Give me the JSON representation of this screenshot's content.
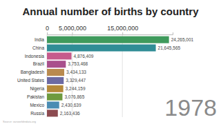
{
  "chart_data": {
    "type": "bar",
    "orientation": "horizontal",
    "title": "Annual number of births by country",
    "categories": [
      "India",
      "China",
      "Indonesia",
      "Brazil",
      "Bangladesh",
      "United States",
      "Nigeria",
      "Pakistan",
      "Mexico",
      "Russia"
    ],
    "values": [
      24265001,
      21645565,
      4876409,
      3753468,
      3434133,
      3329447,
      3244159,
      3076865,
      2430639,
      2163436
    ],
    "value_labels": [
      "24,265,001",
      "21,645,565",
      "4,876,409",
      "3,753,468",
      "3,434,133",
      "3,329,447",
      "3,244,159",
      "3,076,865",
      "2,430,639",
      "2,163,436"
    ],
    "colors": [
      "#3f9a5c",
      "#2f8d96",
      "#c65b8c",
      "#a9508c",
      "#b98a4f",
      "#6c6aa3",
      "#b5893a",
      "#6e9a3e",
      "#4b8cb3",
      "#8c4b50"
    ],
    "data_labels": true,
    "xlim": [
      0,
      25000000
    ],
    "xticks": [
      0,
      {
        "value": 5000000,
        "label": "5,000,000"
      },
      {
        "value": 15000000,
        "label": "15,000,000"
      }
    ],
    "grid": true,
    "annotations": [
      "1978",
      "Source: ourworldindata.org"
    ]
  }
}
